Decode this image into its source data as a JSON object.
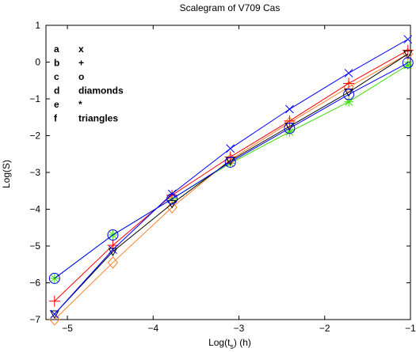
{
  "chart_data": {
    "type": "line",
    "title": "Scalegram of V709 Cas",
    "xlabel_main": "Log(t",
    "xlabel_sub": "s",
    "xlabel_tail": ") (h)",
    "ylabel": "Log(S)",
    "xlim": [
      -5.25,
      -1
    ],
    "ylim": [
      -7,
      1
    ],
    "xticks": [
      -5,
      -4,
      -3,
      -2,
      -1
    ],
    "yticks": [
      -7,
      -6,
      -5,
      -4,
      -3,
      -2,
      -1,
      0,
      1
    ],
    "x": [
      -5.15,
      -4.47,
      -3.78,
      -3.1,
      -2.41,
      -1.72,
      -1.03
    ],
    "legend": [
      {
        "letter": "a",
        "marker": "x"
      },
      {
        "letter": "b",
        "marker": "+"
      },
      {
        "letter": "c",
        "marker": "o"
      },
      {
        "letter": "d",
        "marker": "diamonds"
      },
      {
        "letter": "e",
        "marker": "*"
      },
      {
        "letter": "f",
        "marker": "triangles"
      }
    ],
    "series": [
      {
        "key": "a",
        "marker": "x",
        "color": "#0000ff",
        "values": [
          -6.85,
          -5.1,
          -3.58,
          -2.35,
          -1.28,
          -0.3,
          0.62
        ]
      },
      {
        "key": "b",
        "marker": "+",
        "color": "#ff0000",
        "values": [
          -6.5,
          -4.98,
          -3.62,
          -2.58,
          -1.6,
          -0.58,
          0.32
        ]
      },
      {
        "key": "c",
        "marker": "o",
        "color": "#0000ff",
        "values": [
          -5.88,
          -4.7,
          -3.72,
          -2.72,
          -1.8,
          -0.88,
          -0.02
        ]
      },
      {
        "key": "d",
        "marker": "diamond",
        "color": "#ff7f27",
        "values": [
          -7.0,
          -5.45,
          -3.95,
          -2.65,
          -1.65,
          -0.68,
          0.22
        ]
      },
      {
        "key": "e",
        "marker": "*",
        "color": "#3adc00",
        "values": [
          -5.88,
          -4.7,
          -3.72,
          -2.75,
          -1.9,
          -1.08,
          -0.08
        ]
      },
      {
        "key": "f",
        "marker": "triangle",
        "color": "#000000",
        "values": [
          -6.85,
          -5.15,
          -3.85,
          -2.68,
          -1.75,
          -0.82,
          0.22
        ]
      }
    ]
  }
}
